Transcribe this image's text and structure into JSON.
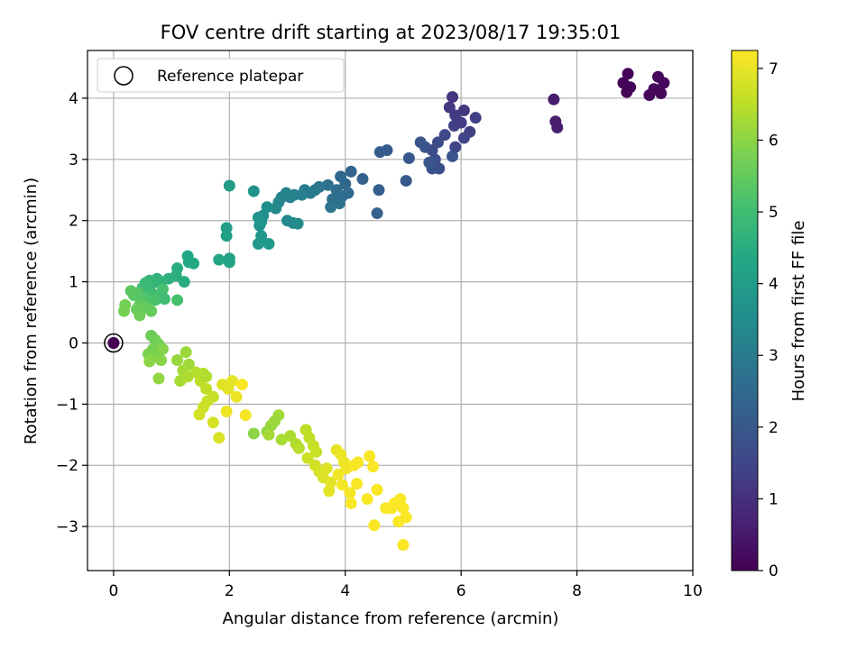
{
  "chart_data": {
    "type": "scatter",
    "title": "FOV centre drift starting at 2023/08/17 19:35:01",
    "xlabel": "Angular distance from reference (arcmin)",
    "ylabel": "Rotation from reference (arcmin)",
    "xlim": [
      -0.45,
      10.0
    ],
    "ylim": [
      -3.72,
      4.78
    ],
    "xticks": [
      0,
      2,
      4,
      6,
      8,
      10
    ],
    "yticks": [
      -3,
      -2,
      -1,
      0,
      1,
      2,
      3,
      4
    ],
    "xtick_labels": [
      "0",
      "2",
      "4",
      "6",
      "8",
      "10"
    ],
    "ytick_labels": [
      "−3",
      "−2",
      "−1",
      "0",
      "1",
      "2",
      "3",
      "4"
    ],
    "grid": true,
    "legend": {
      "position": "top-left",
      "entries": [
        "Reference platepar"
      ]
    },
    "reference_point": {
      "x": 0,
      "y": 0,
      "c": 0
    },
    "colorbar": {
      "label": "Hours from first FF file",
      "colormap": "viridis",
      "range": [
        0,
        7.25
      ],
      "ticks": [
        0,
        1,
        2,
        3,
        4,
        5,
        6,
        7
      ],
      "tick_labels": [
        "0",
        "1",
        "2",
        "3",
        "4",
        "5",
        "6",
        "7"
      ]
    },
    "points": [
      {
        "x": 0.0,
        "y": 0.0,
        "c": 0.0
      },
      {
        "x": 8.8,
        "y": 4.25,
        "c": 0.05
      },
      {
        "x": 8.88,
        "y": 4.4,
        "c": 0.05
      },
      {
        "x": 8.92,
        "y": 4.18,
        "c": 0.07
      },
      {
        "x": 8.86,
        "y": 4.1,
        "c": 0.08
      },
      {
        "x": 9.25,
        "y": 4.05,
        "c": 0.1
      },
      {
        "x": 9.33,
        "y": 4.15,
        "c": 0.12
      },
      {
        "x": 9.4,
        "y": 4.35,
        "c": 0.13
      },
      {
        "x": 9.5,
        "y": 4.25,
        "c": 0.15
      },
      {
        "x": 9.45,
        "y": 4.08,
        "c": 0.15
      },
      {
        "x": 7.6,
        "y": 3.98,
        "c": 0.55
      },
      {
        "x": 7.63,
        "y": 3.62,
        "c": 0.58
      },
      {
        "x": 7.66,
        "y": 3.52,
        "c": 0.6
      },
      {
        "x": 5.85,
        "y": 4.02,
        "c": 1.1
      },
      {
        "x": 6.05,
        "y": 3.8,
        "c": 1.15
      },
      {
        "x": 5.8,
        "y": 3.85,
        "c": 1.2
      },
      {
        "x": 5.9,
        "y": 3.72,
        "c": 1.25
      },
      {
        "x": 6.0,
        "y": 3.6,
        "c": 1.3
      },
      {
        "x": 5.88,
        "y": 3.55,
        "c": 1.35
      },
      {
        "x": 6.25,
        "y": 3.68,
        "c": 1.35
      },
      {
        "x": 6.15,
        "y": 3.45,
        "c": 1.4
      },
      {
        "x": 6.05,
        "y": 3.35,
        "c": 1.45
      },
      {
        "x": 5.9,
        "y": 3.2,
        "c": 1.5
      },
      {
        "x": 5.72,
        "y": 3.4,
        "c": 1.55
      },
      {
        "x": 5.6,
        "y": 3.28,
        "c": 1.6
      },
      {
        "x": 5.5,
        "y": 3.15,
        "c": 1.65
      },
      {
        "x": 5.55,
        "y": 3.0,
        "c": 1.7
      },
      {
        "x": 5.62,
        "y": 2.85,
        "c": 1.75
      },
      {
        "x": 5.5,
        "y": 2.85,
        "c": 1.8
      },
      {
        "x": 5.38,
        "y": 3.2,
        "c": 1.85
      },
      {
        "x": 5.3,
        "y": 3.28,
        "c": 1.9
      },
      {
        "x": 5.85,
        "y": 3.05,
        "c": 1.9
      },
      {
        "x": 5.45,
        "y": 2.95,
        "c": 1.95
      },
      {
        "x": 5.1,
        "y": 3.02,
        "c": 2.0
      },
      {
        "x": 5.05,
        "y": 2.65,
        "c": 2.05
      },
      {
        "x": 4.72,
        "y": 3.15,
        "c": 2.1
      },
      {
        "x": 4.6,
        "y": 3.12,
        "c": 2.15
      },
      {
        "x": 4.58,
        "y": 2.5,
        "c": 2.2
      },
      {
        "x": 4.55,
        "y": 2.12,
        "c": 2.25
      },
      {
        "x": 4.3,
        "y": 2.68,
        "c": 2.3
      },
      {
        "x": 4.1,
        "y": 2.8,
        "c": 2.35
      },
      {
        "x": 4.0,
        "y": 2.6,
        "c": 2.4
      },
      {
        "x": 3.92,
        "y": 2.72,
        "c": 2.45
      },
      {
        "x": 4.05,
        "y": 2.45,
        "c": 2.5
      },
      {
        "x": 3.95,
        "y": 2.4,
        "c": 2.55
      },
      {
        "x": 3.85,
        "y": 2.5,
        "c": 2.6
      },
      {
        "x": 3.78,
        "y": 2.35,
        "c": 2.65
      },
      {
        "x": 3.7,
        "y": 2.58,
        "c": 2.7
      },
      {
        "x": 3.9,
        "y": 2.28,
        "c": 2.75
      },
      {
        "x": 3.75,
        "y": 2.22,
        "c": 2.8
      },
      {
        "x": 3.55,
        "y": 2.55,
        "c": 2.85
      },
      {
        "x": 3.48,
        "y": 2.5,
        "c": 2.9
      },
      {
        "x": 3.4,
        "y": 2.45,
        "c": 2.95
      },
      {
        "x": 3.3,
        "y": 2.5,
        "c": 3.0
      },
      {
        "x": 3.25,
        "y": 2.42,
        "c": 3.05
      },
      {
        "x": 3.12,
        "y": 2.42,
        "c": 3.1
      },
      {
        "x": 3.05,
        "y": 2.38,
        "c": 3.15
      },
      {
        "x": 2.98,
        "y": 2.45,
        "c": 3.2
      },
      {
        "x": 2.9,
        "y": 2.38,
        "c": 3.25
      },
      {
        "x": 2.85,
        "y": 2.3,
        "c": 3.3
      },
      {
        "x": 2.8,
        "y": 2.2,
        "c": 3.35
      },
      {
        "x": 3.0,
        "y": 2.0,
        "c": 3.4
      },
      {
        "x": 3.1,
        "y": 1.96,
        "c": 3.45
      },
      {
        "x": 3.18,
        "y": 1.95,
        "c": 3.5
      },
      {
        "x": 2.65,
        "y": 2.22,
        "c": 3.55
      },
      {
        "x": 2.58,
        "y": 2.08,
        "c": 3.6
      },
      {
        "x": 2.55,
        "y": 1.98,
        "c": 3.65
      },
      {
        "x": 2.52,
        "y": 1.92,
        "c": 3.7
      },
      {
        "x": 2.5,
        "y": 2.05,
        "c": 3.75
      },
      {
        "x": 2.55,
        "y": 1.75,
        "c": 3.8
      },
      {
        "x": 2.5,
        "y": 1.62,
        "c": 3.85
      },
      {
        "x": 2.68,
        "y": 1.62,
        "c": 3.9
      },
      {
        "x": 2.42,
        "y": 2.48,
        "c": 3.7
      },
      {
        "x": 2.0,
        "y": 2.57,
        "c": 4.0
      },
      {
        "x": 1.95,
        "y": 1.88,
        "c": 4.05
      },
      {
        "x": 1.95,
        "y": 1.75,
        "c": 4.1
      },
      {
        "x": 2.0,
        "y": 1.38,
        "c": 4.15
      },
      {
        "x": 2.0,
        "y": 1.32,
        "c": 4.2
      },
      {
        "x": 1.82,
        "y": 1.36,
        "c": 4.25
      },
      {
        "x": 1.28,
        "y": 1.42,
        "c": 4.3
      },
      {
        "x": 1.3,
        "y": 1.32,
        "c": 4.35
      },
      {
        "x": 1.38,
        "y": 1.3,
        "c": 4.4
      },
      {
        "x": 1.1,
        "y": 1.22,
        "c": 4.45
      },
      {
        "x": 1.22,
        "y": 1.0,
        "c": 4.5
      },
      {
        "x": 1.08,
        "y": 1.1,
        "c": 4.55
      },
      {
        "x": 0.95,
        "y": 1.05,
        "c": 4.6
      },
      {
        "x": 0.82,
        "y": 1.0,
        "c": 4.65
      },
      {
        "x": 0.75,
        "y": 1.05,
        "c": 4.7
      },
      {
        "x": 0.68,
        "y": 0.98,
        "c": 4.75
      },
      {
        "x": 0.62,
        "y": 1.02,
        "c": 4.8
      },
      {
        "x": 0.55,
        "y": 0.98,
        "c": 4.85
      },
      {
        "x": 0.5,
        "y": 0.9,
        "c": 4.9
      },
      {
        "x": 0.58,
        "y": 0.85,
        "c": 4.95
      },
      {
        "x": 0.68,
        "y": 0.8,
        "c": 5.0
      },
      {
        "x": 0.78,
        "y": 0.78,
        "c": 5.05
      },
      {
        "x": 0.85,
        "y": 0.88,
        "c": 5.1
      },
      {
        "x": 0.72,
        "y": 0.7,
        "c": 5.15
      },
      {
        "x": 0.62,
        "y": 0.7,
        "c": 5.2
      },
      {
        "x": 0.5,
        "y": 0.75,
        "c": 5.25
      },
      {
        "x": 0.42,
        "y": 0.82,
        "c": 5.3
      },
      {
        "x": 0.35,
        "y": 0.78,
        "c": 5.35
      },
      {
        "x": 0.3,
        "y": 0.85,
        "c": 5.4
      },
      {
        "x": 0.45,
        "y": 0.62,
        "c": 5.45
      },
      {
        "x": 0.55,
        "y": 0.58,
        "c": 5.5
      },
      {
        "x": 0.65,
        "y": 0.52,
        "c": 5.55
      },
      {
        "x": 0.4,
        "y": 0.55,
        "c": 5.6
      },
      {
        "x": 0.45,
        "y": 0.45,
        "c": 5.65
      },
      {
        "x": 0.2,
        "y": 0.62,
        "c": 5.7
      },
      {
        "x": 0.18,
        "y": 0.52,
        "c": 5.75
      },
      {
        "x": 1.1,
        "y": 0.7,
        "c": 5.1
      },
      {
        "x": 0.88,
        "y": 0.72,
        "c": 5.0
      },
      {
        "x": 0.65,
        "y": 0.12,
        "c": 5.6
      },
      {
        "x": 0.72,
        "y": 0.05,
        "c": 5.65
      },
      {
        "x": 0.78,
        "y": -0.02,
        "c": 5.7
      },
      {
        "x": 0.68,
        "y": -0.1,
        "c": 5.75
      },
      {
        "x": 0.6,
        "y": -0.18,
        "c": 5.8
      },
      {
        "x": 0.72,
        "y": -0.22,
        "c": 5.85
      },
      {
        "x": 0.85,
        "y": -0.1,
        "c": 5.9
      },
      {
        "x": 0.82,
        "y": -0.28,
        "c": 5.95
      },
      {
        "x": 0.62,
        "y": -0.3,
        "c": 6.0
      },
      {
        "x": 0.78,
        "y": -0.58,
        "c": 6.05
      },
      {
        "x": 1.1,
        "y": -0.28,
        "c": 6.1
      },
      {
        "x": 1.25,
        "y": -0.15,
        "c": 6.15
      },
      {
        "x": 1.3,
        "y": -0.35,
        "c": 6.2
      },
      {
        "x": 1.2,
        "y": -0.45,
        "c": 6.25
      },
      {
        "x": 1.15,
        "y": -0.62,
        "c": 6.3
      },
      {
        "x": 1.28,
        "y": -0.55,
        "c": 6.35
      },
      {
        "x": 1.42,
        "y": -0.48,
        "c": 6.4
      },
      {
        "x": 1.55,
        "y": -0.5,
        "c": 6.45
      },
      {
        "x": 1.5,
        "y": -0.62,
        "c": 6.5
      },
      {
        "x": 1.6,
        "y": -0.75,
        "c": 6.55
      },
      {
        "x": 1.72,
        "y": -0.88,
        "c": 6.6
      },
      {
        "x": 1.62,
        "y": -0.95,
        "c": 6.65
      },
      {
        "x": 1.55,
        "y": -1.05,
        "c": 6.7
      },
      {
        "x": 1.48,
        "y": -1.17,
        "c": 6.75
      },
      {
        "x": 1.72,
        "y": -1.3,
        "c": 6.8
      },
      {
        "x": 1.82,
        "y": -1.55,
        "c": 6.85
      },
      {
        "x": 1.88,
        "y": -0.68,
        "c": 6.9
      },
      {
        "x": 1.98,
        "y": -0.75,
        "c": 6.95
      },
      {
        "x": 2.05,
        "y": -0.62,
        "c": 7.0
      },
      {
        "x": 2.12,
        "y": -0.88,
        "c": 7.05
      },
      {
        "x": 1.95,
        "y": -1.12,
        "c": 7.1
      },
      {
        "x": 2.28,
        "y": -1.18,
        "c": 7.15
      },
      {
        "x": 2.22,
        "y": -0.68,
        "c": 7.2
      },
      {
        "x": 1.6,
        "y": -0.55,
        "c": 6.4
      },
      {
        "x": 2.42,
        "y": -1.48,
        "c": 6.0
      },
      {
        "x": 2.65,
        "y": -1.45,
        "c": 6.05
      },
      {
        "x": 2.72,
        "y": -1.35,
        "c": 6.1
      },
      {
        "x": 2.78,
        "y": -1.28,
        "c": 6.15
      },
      {
        "x": 2.85,
        "y": -1.18,
        "c": 6.2
      },
      {
        "x": 2.68,
        "y": -1.5,
        "c": 6.25
      },
      {
        "x": 2.9,
        "y": -1.58,
        "c": 6.3
      },
      {
        "x": 3.05,
        "y": -1.52,
        "c": 6.35
      },
      {
        "x": 3.15,
        "y": -1.65,
        "c": 6.4
      },
      {
        "x": 3.2,
        "y": -1.72,
        "c": 6.45
      },
      {
        "x": 3.32,
        "y": -1.42,
        "c": 6.5
      },
      {
        "x": 3.38,
        "y": -1.55,
        "c": 6.55
      },
      {
        "x": 3.45,
        "y": -1.68,
        "c": 6.6
      },
      {
        "x": 3.5,
        "y": -1.78,
        "c": 6.65
      },
      {
        "x": 3.35,
        "y": -1.88,
        "c": 6.7
      },
      {
        "x": 3.48,
        "y": -2.0,
        "c": 6.75
      },
      {
        "x": 3.55,
        "y": -2.1,
        "c": 6.8
      },
      {
        "x": 3.62,
        "y": -2.2,
        "c": 6.85
      },
      {
        "x": 3.68,
        "y": -2.05,
        "c": 6.9
      },
      {
        "x": 3.72,
        "y": -2.42,
        "c": 6.95
      },
      {
        "x": 3.85,
        "y": -1.75,
        "c": 7.0
      },
      {
        "x": 3.92,
        "y": -1.82,
        "c": 7.05
      },
      {
        "x": 3.98,
        "y": -1.95,
        "c": 7.05
      },
      {
        "x": 4.02,
        "y": -2.05,
        "c": 7.1
      },
      {
        "x": 3.88,
        "y": -2.15,
        "c": 7.1
      },
      {
        "x": 3.95,
        "y": -2.32,
        "c": 7.15
      },
      {
        "x": 4.08,
        "y": -2.45,
        "c": 7.15
      },
      {
        "x": 4.1,
        "y": -2.62,
        "c": 7.2
      },
      {
        "x": 4.2,
        "y": -2.3,
        "c": 7.2
      },
      {
        "x": 4.15,
        "y": -2.0,
        "c": 7.2
      },
      {
        "x": 4.22,
        "y": -1.95,
        "c": 7.2
      },
      {
        "x": 4.42,
        "y": -1.85,
        "c": 7.2
      },
      {
        "x": 4.48,
        "y": -2.02,
        "c": 7.2
      },
      {
        "x": 4.38,
        "y": -2.55,
        "c": 7.2
      },
      {
        "x": 4.55,
        "y": -2.4,
        "c": 7.2
      },
      {
        "x": 4.5,
        "y": -2.98,
        "c": 7.2
      },
      {
        "x": 4.7,
        "y": -2.7,
        "c": 7.2
      },
      {
        "x": 4.85,
        "y": -2.62,
        "c": 7.22
      },
      {
        "x": 4.95,
        "y": -2.55,
        "c": 7.22
      },
      {
        "x": 5.0,
        "y": -2.7,
        "c": 7.22
      },
      {
        "x": 5.05,
        "y": -2.85,
        "c": 7.22
      },
      {
        "x": 4.92,
        "y": -2.92,
        "c": 7.22
      },
      {
        "x": 5.0,
        "y": -3.3,
        "c": 7.22
      },
      {
        "x": 4.8,
        "y": -2.7,
        "c": 7.22
      },
      {
        "x": 3.75,
        "y": -2.28,
        "c": 6.95
      }
    ]
  }
}
